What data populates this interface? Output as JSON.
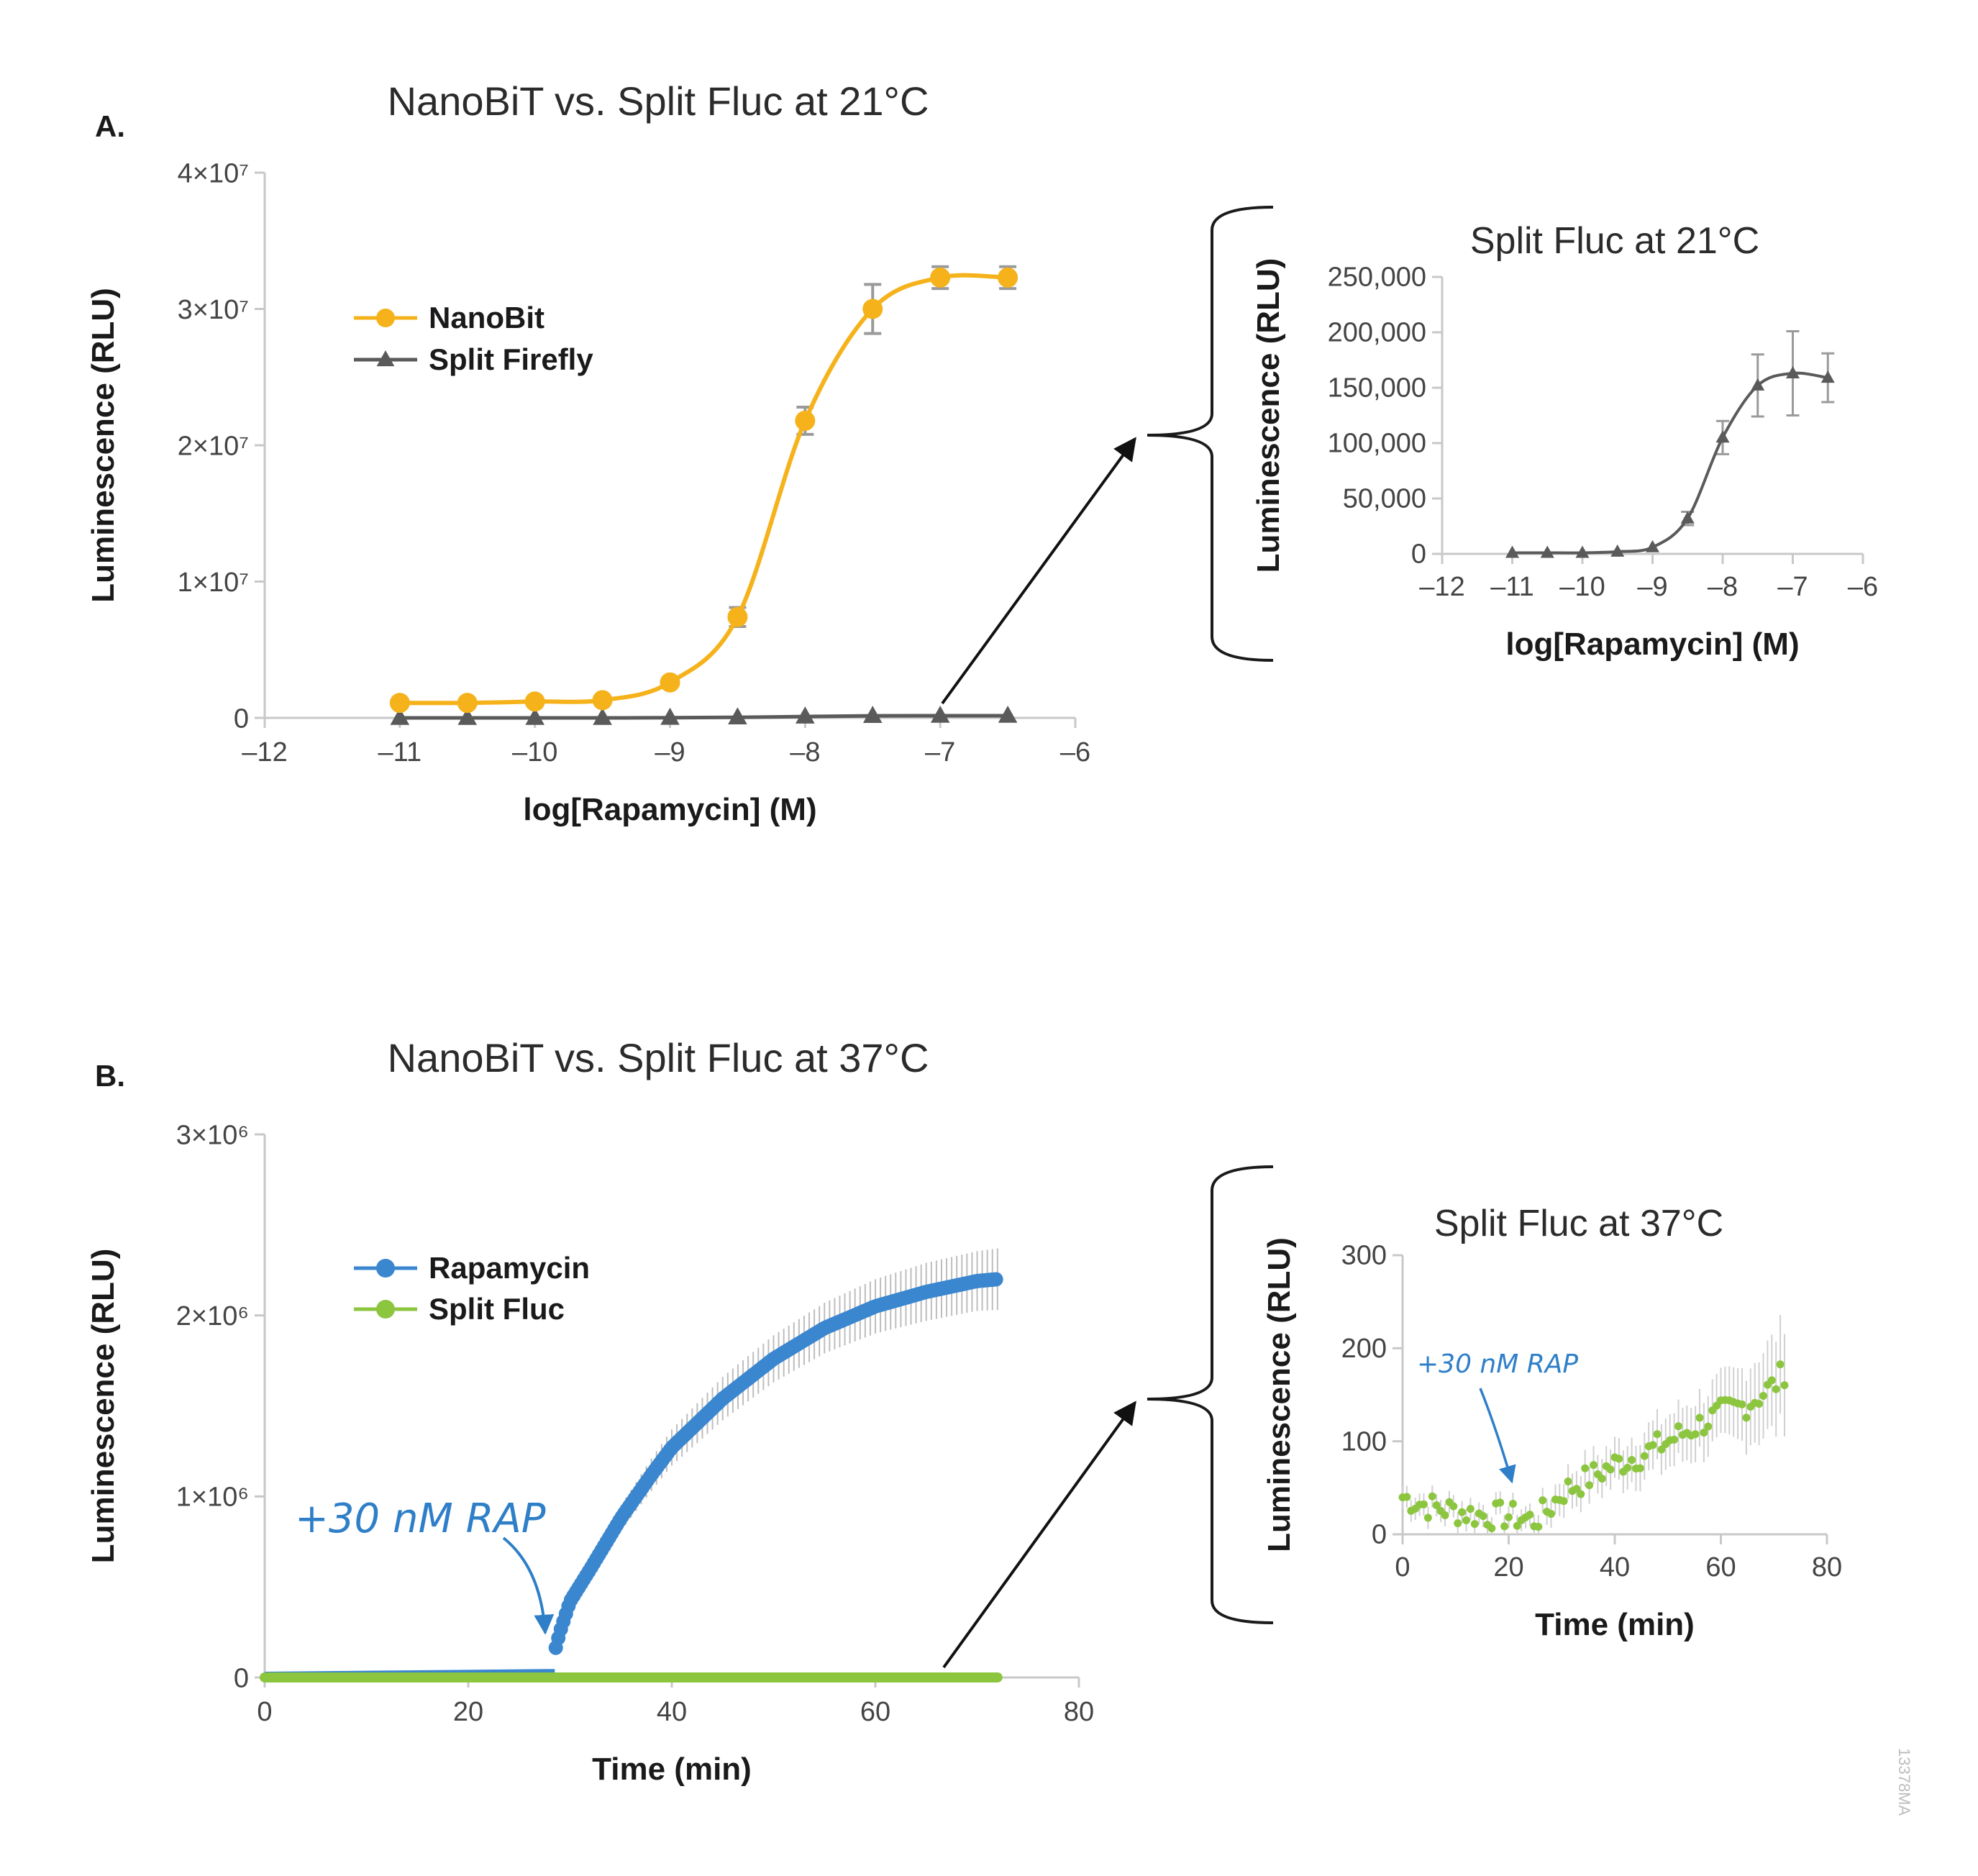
{
  "figure": {
    "id_label": "13378MA"
  },
  "panel_a": {
    "letter": "A.",
    "title": "NanoBiT vs. Split Fluc at 21°C"
  },
  "panel_b": {
    "letter": "B.",
    "title": "NanoBiT vs. Split Fluc at 37°C"
  },
  "colors": {
    "nanobit": "#f5b21b",
    "split_firefly": "#5a5a5a",
    "rapamycin": "#3a86cf",
    "split_fluc": "#8cc63f",
    "error": "#bdbdbd",
    "axis": "#c8c8c8",
    "annotation": "#2f7fc8"
  },
  "chart_data": [
    {
      "id": "A_main",
      "type": "line",
      "title": "NanoBiT vs. Split Fluc at 21°C",
      "xlabel": "log[Rapamycin] (M)",
      "ylabel": "Luminescence (RLU)",
      "xlim": [
        -12,
        -6
      ],
      "ylim": [
        0,
        40000000
      ],
      "xticks": [
        -12,
        -11,
        -10,
        -9,
        -8,
        -7,
        -6
      ],
      "xtick_labels": [
        "–12",
        "–11",
        "–10",
        "–9",
        "–8",
        "–7",
        "–6"
      ],
      "yticks": [
        0,
        10000000,
        20000000,
        30000000,
        40000000
      ],
      "ytick_labels": [
        "0",
        "1×10⁷",
        "2×10⁷",
        "3×10⁷",
        "4×10⁷"
      ],
      "legend_position": "upper-left",
      "series": [
        {
          "name": "NanoBit",
          "marker": "circle",
          "color": "#f5b21b",
          "x": [
            -11,
            -10.5,
            -10,
            -9.5,
            -9,
            -8.5,
            -8,
            -7.5,
            -7,
            -6.5
          ],
          "y": [
            1100000,
            1100000,
            1200000,
            1300000,
            2600000,
            7400000,
            21800000,
            30000000,
            32300000,
            32300000
          ],
          "err": [
            0,
            0,
            0,
            0,
            0,
            700000,
            1000000,
            1800000,
            800000,
            800000
          ]
        },
        {
          "name": "Split Firefly",
          "marker": "triangle",
          "color": "#5a5a5a",
          "x": [
            -11,
            -10.5,
            -10,
            -9.5,
            -9,
            -8.5,
            -8,
            -7.5,
            -7,
            -6.5
          ],
          "y": [
            0,
            0,
            0,
            0,
            10000,
            40000,
            100000,
            150000,
            160000,
            160000
          ],
          "err": [
            0,
            0,
            0,
            0,
            0,
            0,
            0,
            0,
            0,
            0
          ]
        }
      ]
    },
    {
      "id": "A_inset",
      "type": "line",
      "title": "Split Fluc at 21°C",
      "xlabel": "log[Rapamycin] (M)",
      "ylabel": "Luminescence (RLU)",
      "xlim": [
        -12,
        -6
      ],
      "ylim": [
        0,
        250000
      ],
      "xticks": [
        -12,
        -11,
        -10,
        -9,
        -8,
        -7,
        -6
      ],
      "xtick_labels": [
        "–12",
        "–11",
        "–10",
        "–9",
        "–8",
        "–7",
        "–6"
      ],
      "yticks": [
        0,
        50000,
        100000,
        150000,
        200000,
        250000
      ],
      "ytick_labels": [
        "0",
        "50,000",
        "100,000",
        "150,000",
        "200,000",
        "250,000"
      ],
      "series": [
        {
          "name": "Split Firefly",
          "marker": "triangle",
          "color": "#5a5a5a",
          "x": [
            -11,
            -10.5,
            -10,
            -9.5,
            -9,
            -8.5,
            -8,
            -7.5,
            -7,
            -6.5
          ],
          "y": [
            1000,
            1000,
            1000,
            2000,
            6000,
            32000,
            105000,
            152000,
            163000,
            159000
          ],
          "err": [
            0,
            0,
            0,
            0,
            0,
            6000,
            15000,
            28000,
            38000,
            22000
          ]
        }
      ]
    },
    {
      "id": "B_main",
      "type": "scatter",
      "title": "NanoBiT vs. Split Fluc at 37°C",
      "xlabel": "Time (min)",
      "ylabel": "Luminescence (RLU)",
      "xlim": [
        0,
        80
      ],
      "ylim": [
        0,
        3000000
      ],
      "xticks": [
        0,
        20,
        40,
        60,
        80
      ],
      "xtick_labels": [
        "0",
        "20",
        "40",
        "60",
        "80"
      ],
      "yticks": [
        0,
        1000000,
        2000000,
        3000000
      ],
      "ytick_labels": [
        "0",
        "1×10⁶",
        "2×10⁶",
        "3×10⁶"
      ],
      "legend_position": "upper-left",
      "annotation": {
        "text": "+30 nM RAP",
        "x": 28.5
      },
      "series": [
        {
          "name": "Rapamycin",
          "marker": "circle",
          "color": "#3a86cf",
          "x": [
            0,
            10,
            20,
            28,
            29,
            30,
            32,
            35,
            38,
            40,
            45,
            50,
            55,
            60,
            65,
            70,
            72
          ],
          "y": [
            20000,
            25000,
            30000,
            35000,
            250000,
            420000,
            600000,
            880000,
            1120000,
            1270000,
            1540000,
            1760000,
            1930000,
            2050000,
            2130000,
            2190000,
            2200000
          ],
          "err": [
            0,
            0,
            0,
            0,
            20000,
            40000,
            50000,
            70000,
            90000,
            100000,
            120000,
            130000,
            140000,
            150000,
            160000,
            165000,
            170000
          ]
        },
        {
          "name": "Split Fluc",
          "marker": "circle",
          "color": "#8cc63f",
          "x": [
            0,
            72
          ],
          "y": [
            150,
            150
          ]
        }
      ]
    },
    {
      "id": "B_inset",
      "type": "scatter",
      "title": "Split Fluc at 37°C",
      "xlabel": "Time (min)",
      "ylabel": "Luminescence (RLU)",
      "xlim": [
        0,
        80
      ],
      "ylim": [
        0,
        300
      ],
      "xticks": [
        0,
        20,
        40,
        60,
        80
      ],
      "xtick_labels": [
        "0",
        "20",
        "40",
        "60",
        "80"
      ],
      "yticks": [
        0,
        100,
        200,
        300
      ],
      "ytick_labels": [
        "0",
        "100",
        "200",
        "300"
      ],
      "annotation": {
        "text": "+30 nM RAP",
        "x": 22
      },
      "series": [
        {
          "name": "Split Fluc",
          "marker": "circle",
          "color": "#8cc63f",
          "x": [
            0,
            5,
            10,
            15,
            20,
            25,
            28,
            30,
            35,
            40,
            45,
            50,
            55,
            60,
            65,
            70,
            72
          ],
          "y": [
            40,
            30,
            25,
            20,
            20,
            15,
            30,
            45,
            60,
            75,
            85,
            100,
            115,
            130,
            140,
            160,
            175
          ],
          "err": [
            12,
            12,
            12,
            12,
            12,
            12,
            15,
            18,
            20,
            22,
            25,
            28,
            30,
            35,
            40,
            50,
            55
          ]
        }
      ]
    }
  ]
}
